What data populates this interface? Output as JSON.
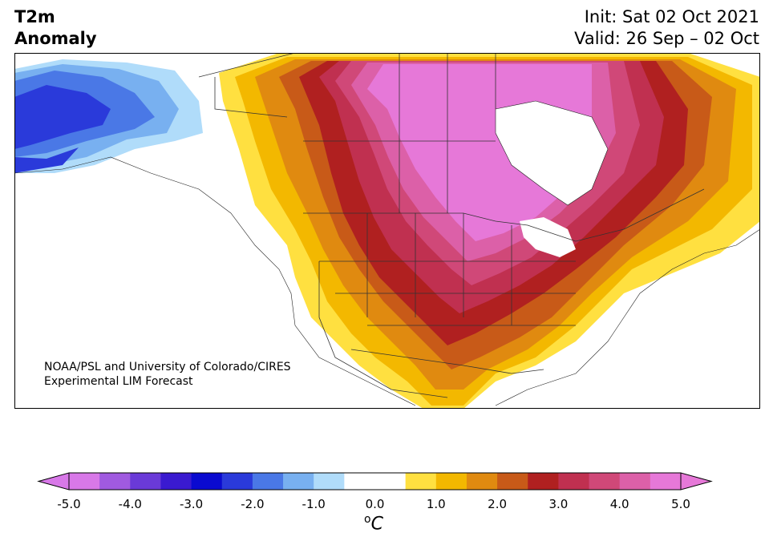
{
  "header": {
    "title_line1": "T2m",
    "title_line2": "Anomaly",
    "init_text": "Init: Sat 02 Oct 2021",
    "valid_text": "Valid: 26 Sep – 02 Oct"
  },
  "map": {
    "region": "North America",
    "credit_line1": "NOAA/PSL and University of Colorado/CIRES",
    "credit_line2": "Experimental LIM Forecast"
  },
  "colorbar": {
    "ticks": [
      "-5.0",
      "-4.0",
      "-3.0",
      "-2.0",
      "-1.0",
      "0.0",
      "1.0",
      "2.0",
      "3.0",
      "4.0",
      "5.0"
    ],
    "unit_base": "C",
    "unit_sup": "o",
    "colors": [
      "#d878e8",
      "#a05ae0",
      "#6a3ad8",
      "#3a1ad0",
      "#0a0ad0",
      "#2a3ada",
      "#4a78e6",
      "#78b0f0",
      "#b0dcfa",
      "#ffffff",
      "#ffffff",
      "#ffe040",
      "#f3b800",
      "#e08a10",
      "#c85a18",
      "#b02020",
      "#c03050",
      "#d04878",
      "#dc60a8",
      "#e678d8"
    ]
  }
}
